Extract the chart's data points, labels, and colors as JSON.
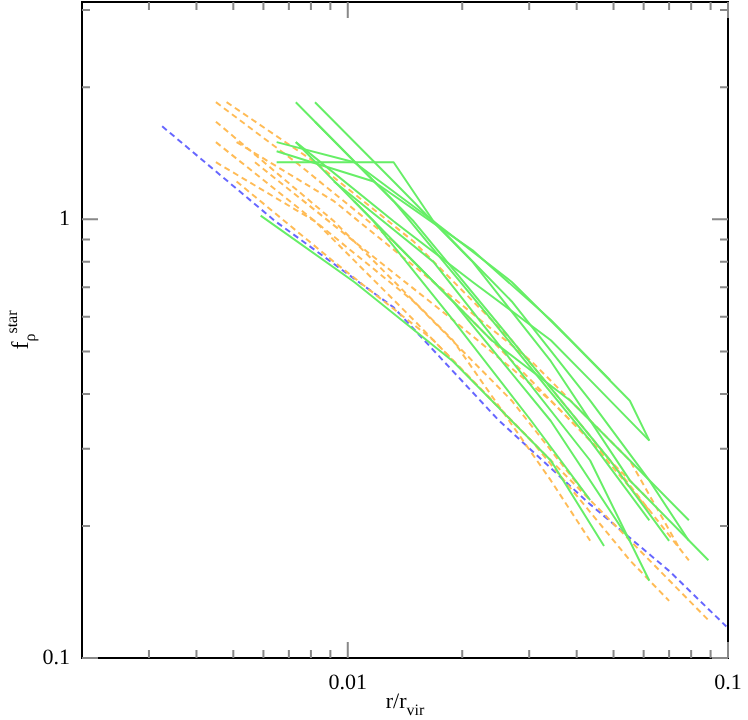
{
  "chart_data": {
    "type": "line",
    "xlabel": "r/r$_{vir}$",
    "ylabel": "f$_{ρ}$$^{star}$",
    "log": "xy",
    "marker": "none",
    "xlim": [
      0.002,
      0.1
    ],
    "ylim": [
      0.1,
      3.13
    ],
    "xticks": [
      {
        "value": 0.003,
        "label": null
      },
      {
        "value": 0.004,
        "label": null
      },
      {
        "value": 0.005,
        "label": null
      },
      {
        "value": 0.006,
        "label": null
      },
      {
        "value": 0.007,
        "label": null
      },
      {
        "value": 0.008,
        "label": null
      },
      {
        "value": 0.009,
        "label": null
      },
      0.01,
      {
        "value": 0.02,
        "label": null
      },
      {
        "value": 0.03,
        "label": null
      },
      {
        "value": 0.04,
        "label": null
      },
      {
        "value": 0.05,
        "label": null
      },
      {
        "value": 0.06,
        "label": null
      },
      {
        "value": 0.07,
        "label": null
      },
      {
        "value": 0.08,
        "label": null
      },
      {
        "value": 0.09,
        "label": null
      },
      0.1
    ],
    "yticks": [
      0.1,
      {
        "value": 0.2,
        "label": null
      },
      {
        "value": 0.3,
        "label": null
      },
      {
        "value": 0.4,
        "label": null
      },
      {
        "value": 0.5,
        "label": null
      },
      {
        "value": 0.6,
        "label": null
      },
      {
        "value": 0.7,
        "label": null
      },
      {
        "value": 0.8,
        "label": null
      },
      {
        "value": 0.9,
        "label": null
      },
      1,
      {
        "value": 2,
        "label": null
      },
      {
        "value": 3,
        "label": null
      }
    ],
    "series": [
      {
        "color": "#66ee66",
        "line_style": "solid",
        "x": [
          0.0073,
          0.0132,
          0.0239,
          0.0434,
          0.0621
        ],
        "values": [
          1.85,
          1.1,
          0.59,
          0.313,
          0.206
        ]
      },
      {
        "color": "#66ee66",
        "line_style": "solid",
        "x": [
          0.0082,
          0.0149,
          0.027,
          0.049,
          0.07
        ],
        "values": [
          1.67,
          0.99,
          0.53,
          0.282,
          0.185
        ]
      },
      {
        "color": "#66ee66",
        "line_style": "solid",
        "x": [
          0.0065,
          0.0132,
          0.0168,
          0.027,
          0.0434,
          0.0621,
          0.0789
        ],
        "values": [
          1.35,
          1.35,
          0.99,
          0.65,
          0.386,
          0.254,
          0.185
        ]
      },
      {
        "color": "#66ee66",
        "line_style": "solid",
        "x": [
          0.0065,
          0.0104,
          0.0168,
          0.027,
          0.0385,
          0.0552,
          0.0621
        ],
        "values": [
          1.5,
          1.35,
          0.99,
          0.72,
          0.53,
          0.386,
          0.313
        ]
      },
      {
        "color": "#66ee66",
        "line_style": "solid",
        "x": [
          0.0059,
          0.0104,
          0.0189,
          0.0342,
          0.0472
        ],
        "values": [
          1.02,
          0.72,
          0.475,
          0.282,
          0.18
        ]
      },
      {
        "color": "#66ee66",
        "line_style": "solid",
        "x": [
          0.0073,
          0.0132,
          0.0213,
          0.0342,
          0.0434,
          0.0621
        ],
        "values": [
          1.5,
          0.99,
          0.72,
          0.53,
          0.43,
          0.313
        ]
      },
      {
        "color": "#66ee66",
        "line_style": "solid",
        "x": [
          0.0082,
          0.0132,
          0.0213,
          0.0342,
          0.0552,
          0.0888
        ],
        "values": [
          1.85,
          1.22,
          0.8,
          0.475,
          0.254,
          0.167
        ]
      },
      {
        "color": "#66ee66",
        "line_style": "solid",
        "x": [
          0.0092,
          0.0168,
          0.027,
          0.0434,
          0.0621
        ],
        "values": [
          1.22,
          0.8,
          0.475,
          0.282,
          0.15
        ]
      },
      {
        "color": "#66ee66",
        "line_style": "solid",
        "x": [
          0.0104,
          0.0189,
          0.0342,
          0.0552
        ],
        "values": [
          1.1,
          0.65,
          0.347,
          0.185
        ]
      },
      {
        "color": "#66ee66",
        "line_style": "solid",
        "x": [
          0.0132,
          0.0239,
          0.0385,
          0.0552,
          0.0789
        ],
        "values": [
          0.89,
          0.53,
          0.386,
          0.282,
          0.206
        ]
      },
      {
        "color": "#66ee66",
        "line_style": "solid",
        "x": [
          0.0073,
          0.0117,
          0.0189,
          0.0304,
          0.0434
        ],
        "values": [
          1.5,
          0.99,
          0.59,
          0.347,
          0.229
        ]
      },
      {
        "color": "#66ee66",
        "line_style": "solid",
        "x": [
          0.0065,
          0.0117,
          0.0213,
          0.0342,
          0.049
        ],
        "values": [
          1.43,
          1.22,
          0.85,
          0.59,
          0.43
        ]
      },
      {
        "color": "#ffbb55",
        "line_style": "dashed",
        "x": [
          0.0045,
          0.0073,
          0.0132,
          0.0239,
          0.0434,
          0.0621
        ],
        "values": [
          1.85,
          1.35,
          0.89,
          0.53,
          0.313,
          0.217
        ]
      },
      {
        "color": "#ffbb55",
        "line_style": "dashed",
        "x": [
          0.0048,
          0.0082,
          0.0149,
          0.027,
          0.049,
          0.0789
        ],
        "values": [
          1.85,
          1.35,
          0.89,
          0.53,
          0.282,
          0.167
        ]
      },
      {
        "color": "#ffbb55",
        "line_style": "dashed",
        "x": [
          0.0045,
          0.0082,
          0.0149,
          0.027,
          0.049,
          0.0888
        ],
        "values": [
          1.5,
          0.99,
          0.59,
          0.347,
          0.206,
          0.122
        ]
      },
      {
        "color": "#ffbb55",
        "line_style": "dashed",
        "x": [
          0.0045,
          0.0082,
          0.0149,
          0.027,
          0.0434
        ],
        "values": [
          1.35,
          0.99,
          0.65,
          0.386,
          0.229
        ]
      },
      {
        "color": "#ffbb55",
        "line_style": "dashed",
        "x": [
          0.0051,
          0.0092,
          0.0168,
          0.0304,
          0.0552,
          0.0745
        ],
        "values": [
          1.5,
          1.1,
          0.72,
          0.475,
          0.282,
          0.178
        ]
      },
      {
        "color": "#ffbb55",
        "line_style": "dashed",
        "x": [
          0.0045,
          0.0092,
          0.0189,
          0.0342,
          0.0434
        ],
        "values": [
          1.67,
          0.99,
          0.53,
          0.254,
          0.185
        ]
      },
      {
        "color": "#ffbb55",
        "line_style": "dashed",
        "x": [
          0.0057,
          0.0104,
          0.0189,
          0.0342,
          0.0621
        ],
        "values": [
          1.35,
          0.89,
          0.59,
          0.386,
          0.229
        ]
      },
      {
        "color": "#ffbb55",
        "line_style": "dashed",
        "x": [
          0.0051,
          0.0092,
          0.0168,
          0.0304,
          0.0552,
          0.07
        ],
        "values": [
          1.22,
          0.8,
          0.53,
          0.313,
          0.167,
          0.135
        ]
      },
      {
        "color": "#6666ff",
        "line_style": "dashed",
        "x": [
          0.00325,
          0.00645,
          0.0132,
          0.0248,
          0.0434,
          0.07,
          0.099
        ],
        "values": [
          1.63,
          0.99,
          0.63,
          0.35,
          0.224,
          0.158,
          0.118
        ]
      }
    ]
  }
}
